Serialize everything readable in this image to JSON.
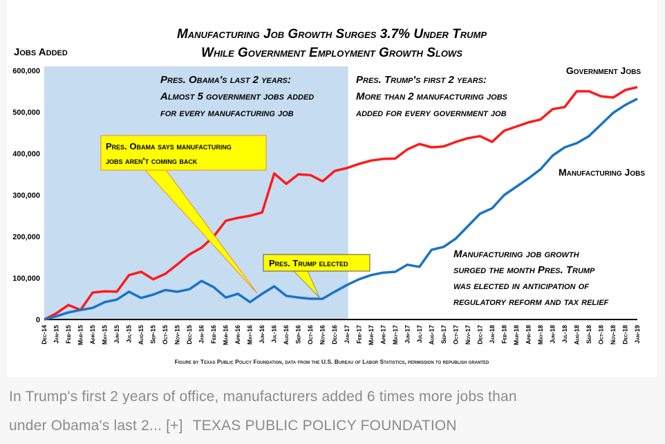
{
  "chart_data": {
    "type": "line",
    "title": [
      "Manufacturing Job Growth Surges 3.7% Under Trump",
      "While Government Employment Growth Slows"
    ],
    "ylabel": "Jobs Added",
    "xlabel": "",
    "ylim": [
      0,
      600000
    ],
    "yticks": [
      0,
      100000,
      200000,
      300000,
      400000,
      500000,
      600000
    ],
    "ytick_labels": [
      "0",
      "100,000",
      "200,000",
      "300,000",
      "400,000",
      "500,000",
      "600,000"
    ],
    "categories": [
      "Dec-14",
      "Jan-15",
      "Feb-15",
      "Mar-15",
      "Apr-15",
      "May-15",
      "Jun-15",
      "Jul-15",
      "Aug-15",
      "Sep-15",
      "Oct-15",
      "Nov-15",
      "Dec-15",
      "Jan-16",
      "Feb-16",
      "Mar-16",
      "Apr-16",
      "May-16",
      "Jun-16",
      "Jul-16",
      "Aug-16",
      "Sep-16",
      "Oct-16",
      "Nov-16",
      "Dec-16",
      "Jan-17",
      "Feb-17",
      "Mar-17",
      "Apr-17",
      "May-17",
      "Jun-17",
      "Jul-17",
      "Aug-17",
      "Sep-17",
      "Oct-17",
      "Nov-17",
      "Dec-17",
      "Jan-18",
      "Feb-18",
      "Mar-18",
      "Apr-18",
      "May-18",
      "Jun-18",
      "Jul-18",
      "Aug-18",
      "Sep-18",
      "Oct-18",
      "Nov-18",
      "Dec-18",
      "Jan-19"
    ],
    "series": [
      {
        "name": "Government Jobs",
        "color": "#ff1a1a",
        "values": [
          0,
          15000,
          35000,
          23000,
          65000,
          68000,
          67000,
          107000,
          115000,
          97000,
          110000,
          133000,
          157000,
          173000,
          200000,
          238000,
          245000,
          250000,
          258000,
          352000,
          327000,
          350000,
          348000,
          333000,
          358000,
          365000,
          375000,
          383000,
          387000,
          388000,
          410000,
          423000,
          415000,
          417000,
          428000,
          437000,
          442000,
          428000,
          455000,
          465000,
          475000,
          482000,
          507000,
          512000,
          550000,
          550000,
          538000,
          535000,
          553000,
          560000
        ]
      },
      {
        "name": "Manufacturing Jobs",
        "color": "#1a73c4",
        "values": [
          0,
          8000,
          17000,
          23000,
          28000,
          42000,
          48000,
          67000,
          52000,
          60000,
          71000,
          67000,
          73000,
          93000,
          78000,
          53000,
          62000,
          42000,
          62000,
          80000,
          57000,
          53000,
          50000,
          50000,
          67000,
          83000,
          97000,
          107000,
          113000,
          115000,
          132000,
          127000,
          168000,
          175000,
          195000,
          225000,
          255000,
          268000,
          300000,
          320000,
          340000,
          362000,
          395000,
          415000,
          425000,
          442000,
          470000,
          498000,
          517000,
          532000
        ]
      }
    ],
    "shaded_region": {
      "from": "Dec-14",
      "to": "Jan-17",
      "color": "#c6dcf1"
    },
    "annotations": {
      "obama_period": [
        "Pres. Obama's last 2 years:",
        "Almost 5 government jobs added",
        "for every manufacturing job"
      ],
      "trump_period": [
        "Pres. Trump's first 2 years:",
        "More than 2 manufacturing jobs",
        "added for every government job"
      ],
      "obama_callout": [
        "Pres. Obama says manufacturing",
        "jobs aren't coming back"
      ],
      "obama_callout_point": "Jun-16",
      "trump_callout": "Pres. Trump elected",
      "trump_callout_point": "Nov-16",
      "surge_note": [
        "Manufacturing job growth",
        "surged the month Pres. Trump",
        "was elected in anticipation of",
        "regulatory reform and tax relief"
      ],
      "callout_color": "#ffff00"
    },
    "source": "Figure by Texas Public Policy Foundation, data from the U.S. Bureau of Labor Statistics, permission to republish granted",
    "grid": false,
    "legend": "inline labels"
  },
  "caption": {
    "text": "In Trump's first 2 years of office, manufacturers added 6 times more jobs than",
    "text2": "under Obama's last 2...",
    "expand": "[+]",
    "credit": "TEXAS PUBLIC POLICY FOUNDATION"
  }
}
